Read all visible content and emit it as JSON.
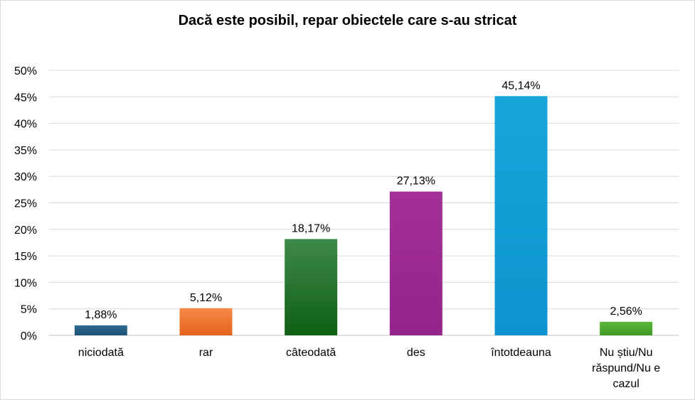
{
  "chart_data": {
    "type": "bar",
    "title": "Dacă este posibil, repar obiectele care s-au stricat",
    "xlabel": "",
    "ylabel": "",
    "ylim": [
      0,
      50
    ],
    "yticks": [
      "0%",
      "5%",
      "10%",
      "15%",
      "20%",
      "25%",
      "30%",
      "35%",
      "40%",
      "45%",
      "50%"
    ],
    "categories": [
      "niciodată",
      "rar",
      "câteodată",
      "des",
      "întotdeauna",
      "Nu știu/Nu răspund/Nu e cazul"
    ],
    "category_lines": [
      [
        "niciodată"
      ],
      [
        "rar"
      ],
      [
        "câteodată"
      ],
      [
        "des"
      ],
      [
        "întotdeauna"
      ],
      [
        "Nu știu/Nu",
        "răspund/Nu e",
        "cazul"
      ]
    ],
    "values": [
      1.88,
      5.12,
      18.17,
      27.13,
      45.14,
      2.56
    ],
    "data_labels": [
      "1,88%",
      "5,12%",
      "18,17%",
      "27,13%",
      "45,14%",
      "2,56%"
    ],
    "colors": [
      [
        "#2e6b93",
        "#1d4f72"
      ],
      [
        "#f58a45",
        "#e3621c"
      ],
      [
        "#3d8a4a",
        "#0f5f14"
      ],
      [
        "#a33097",
        "#93248a"
      ],
      [
        "#17a6dc",
        "#0d93cd"
      ],
      [
        "#5cb83a",
        "#3f9a25"
      ]
    ],
    "grid": true,
    "legend": "none"
  }
}
